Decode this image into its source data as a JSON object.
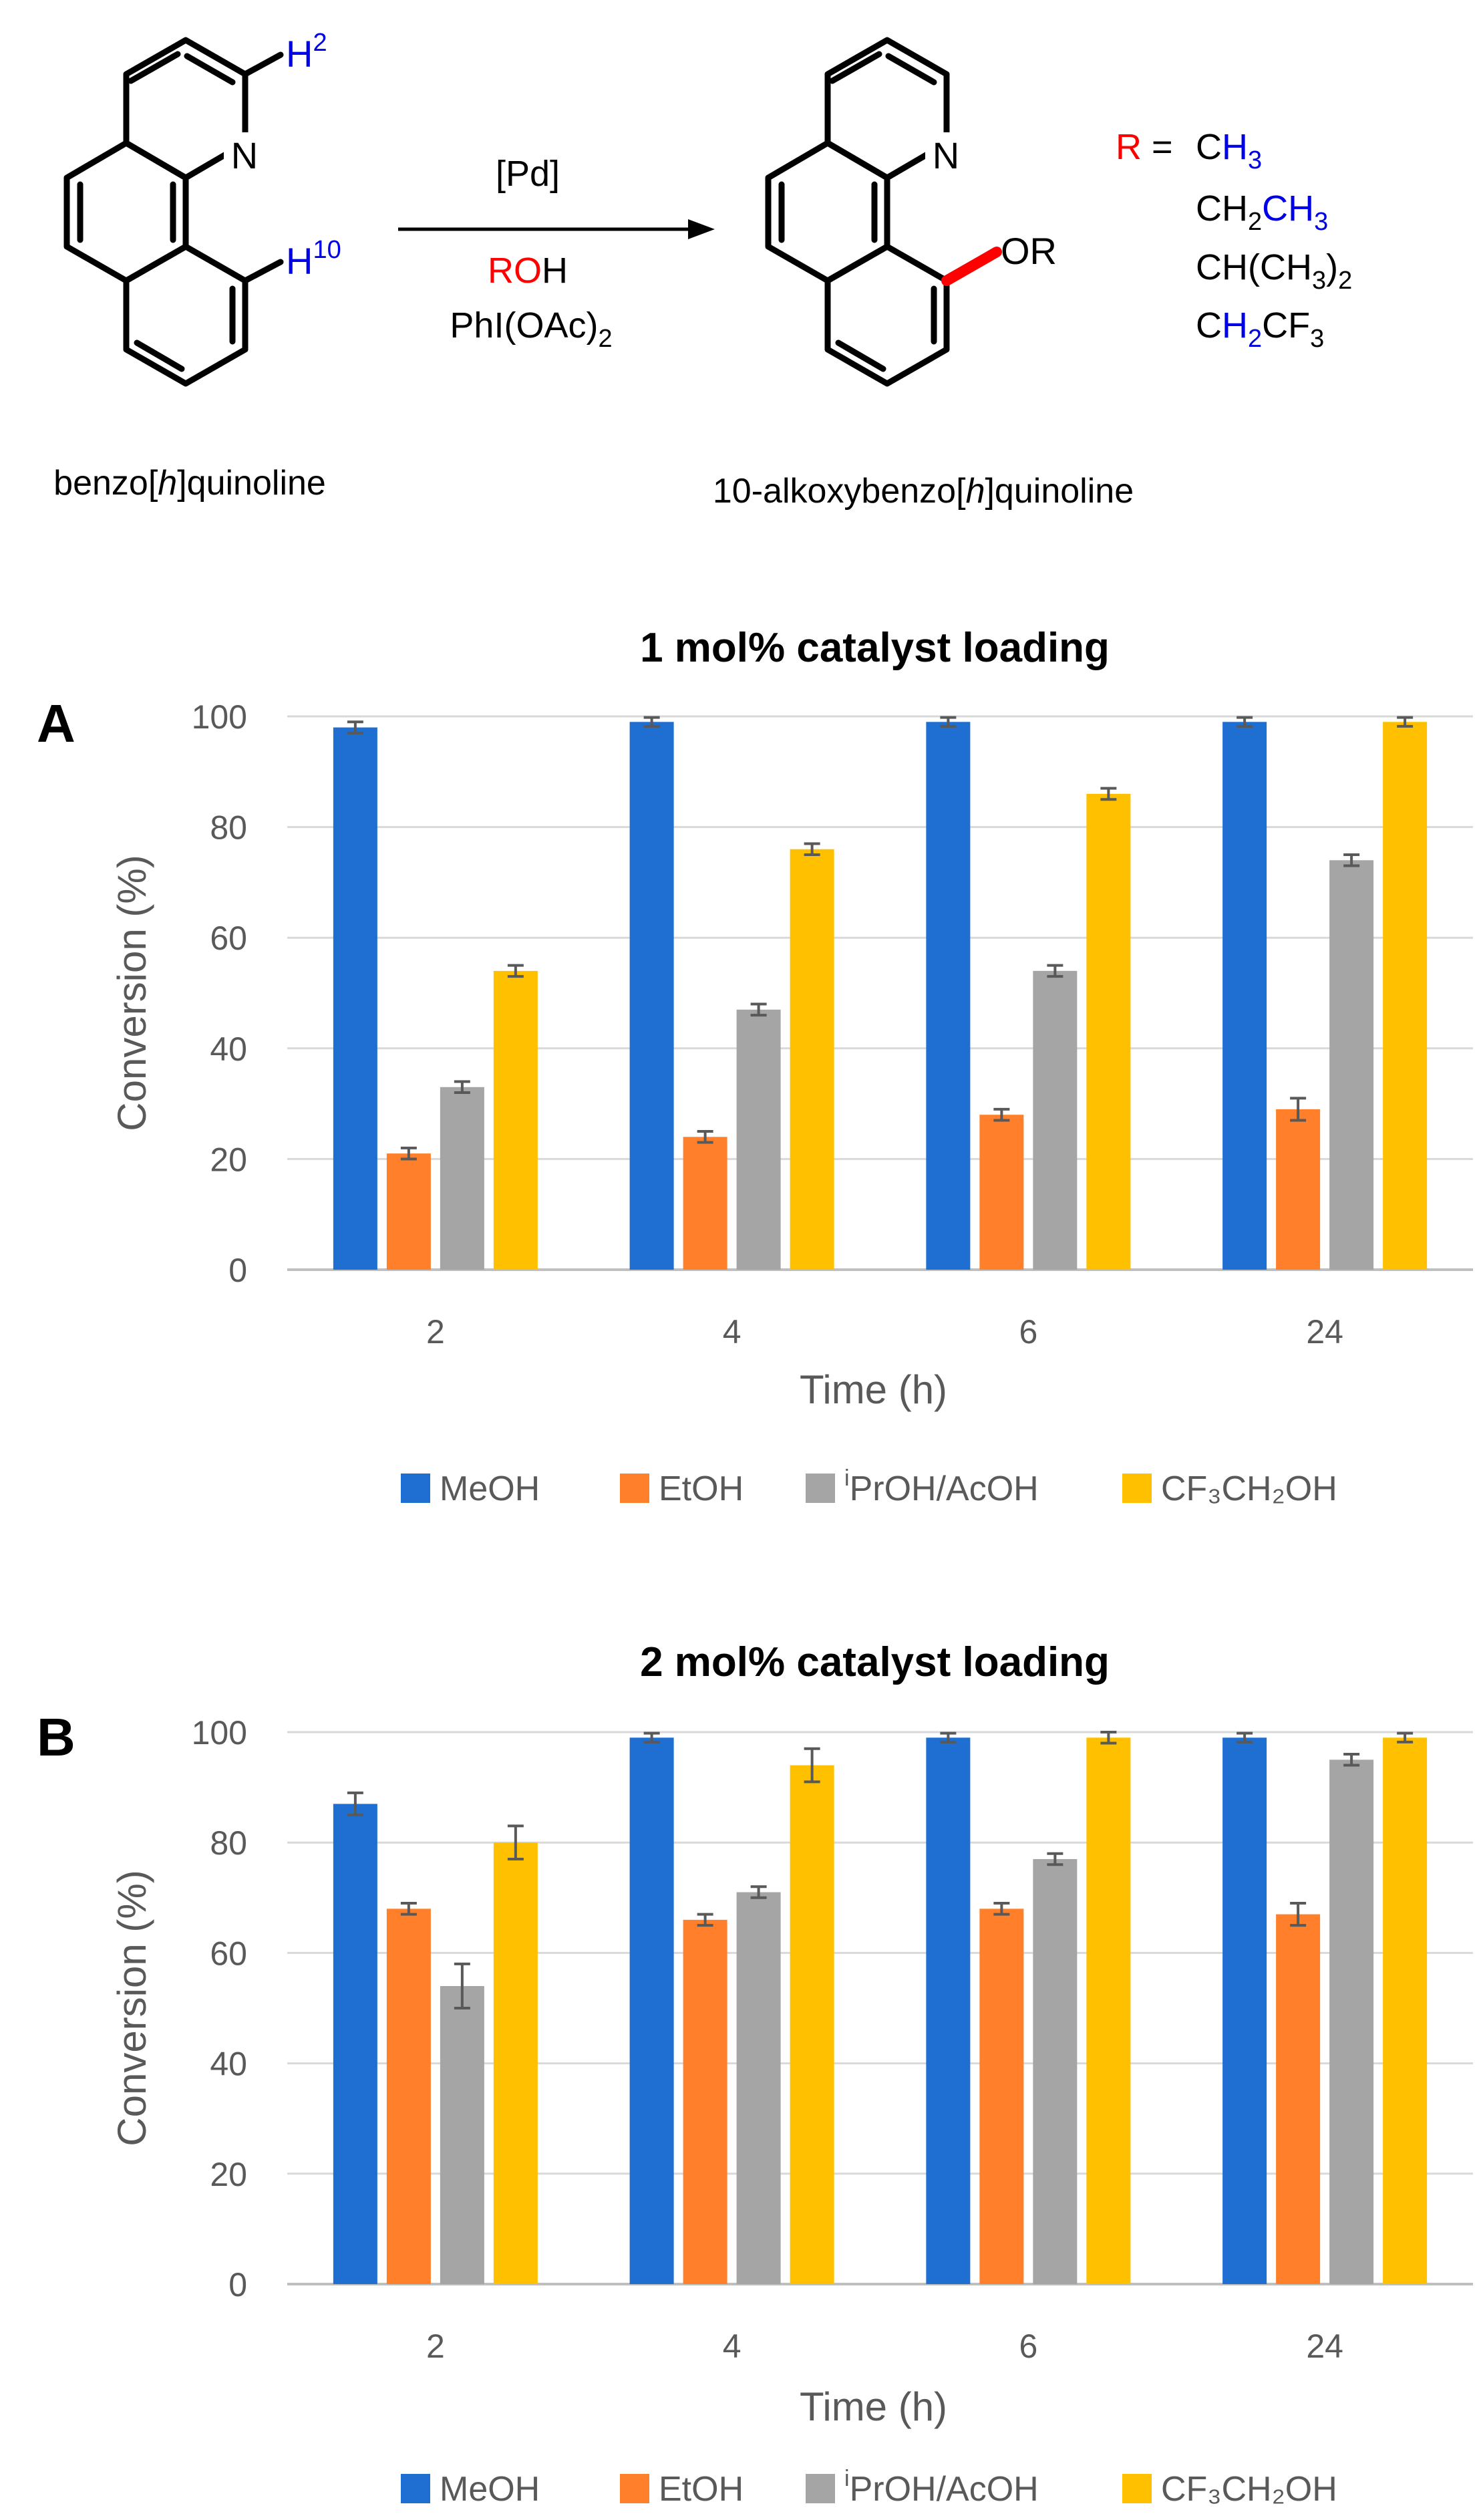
{
  "scheme": {
    "h2": {
      "letter": "H",
      "sup": "2"
    },
    "h10": {
      "letter": "H",
      "sup": "10"
    },
    "ring_n": "N",
    "product_n": "N",
    "product_or": "OR",
    "reagent_catalyst": "[Pd]",
    "reagent_alcohol": {
      "r": "RO",
      "h": "H"
    },
    "reagent_oxidant": "PhI(OAc)",
    "reagent_oxidant_sub": "2",
    "r_label": "R",
    "r_equals": " = ",
    "r_options": [
      [
        {
          "t": "C",
          "c": "k"
        },
        {
          "t": "H",
          "c": "b"
        },
        {
          "t": "3",
          "c": "b",
          "sub": true
        }
      ],
      [
        {
          "t": "CH",
          "c": "k"
        },
        {
          "t": "2",
          "c": "k",
          "sub": true
        },
        {
          "t": "CH",
          "c": "b"
        },
        {
          "t": "3",
          "c": "b",
          "sub": true
        }
      ],
      [
        {
          "t": "CH(CH",
          "c": "k"
        },
        {
          "t": "3",
          "c": "k",
          "sub": true
        },
        {
          "t": ")",
          "c": "k"
        },
        {
          "t": "2",
          "c": "k",
          "sub": true
        }
      ],
      [
        {
          "t": "C",
          "c": "k"
        },
        {
          "t": "H",
          "c": "b"
        },
        {
          "t": "2",
          "c": "b",
          "sub": true
        },
        {
          "t": "CF",
          "c": "k"
        },
        {
          "t": "3",
          "c": "k",
          "sub": true
        }
      ]
    ],
    "reactant_name": {
      "pre": "benzo[",
      "it": "h",
      "post": "]quinoline"
    },
    "product_name": {
      "pre": "10-alkoxybenzo[",
      "it": "h",
      "post": "]quinoline"
    }
  },
  "chart_data": [
    {
      "panel": "A",
      "type": "bar",
      "title": "1 mol% catalyst loading",
      "xlabel": "Time (h)",
      "ylabel": "Conversion (%)",
      "categories": [
        "2",
        "4",
        "6",
        "24"
      ],
      "ylim": [
        0,
        100
      ],
      "yticks": [
        0,
        20,
        40,
        60,
        80,
        100
      ],
      "grid": true,
      "legend": "bottom",
      "series": [
        {
          "name": "MeOH",
          "legend": {
            "pre": "MeOH",
            "sup": "",
            "main": ""
          },
          "color": "#1f6fd2",
          "values": [
            98,
            99,
            99,
            99
          ],
          "errors": [
            1,
            0.8,
            0.8,
            0.8
          ]
        },
        {
          "name": "EtOH",
          "legend": {
            "pre": "EtOH",
            "sup": "",
            "main": ""
          },
          "color": "#ff7f2a",
          "values": [
            21,
            24,
            28,
            29
          ],
          "errors": [
            1,
            1,
            1,
            2
          ]
        },
        {
          "name": "iPrOH/AcOH",
          "legend": {
            "pre": "",
            "sup": "i",
            "main": "PrOH/AcOH"
          },
          "color": "#a5a5a5",
          "values": [
            33,
            47,
            54,
            74
          ],
          "errors": [
            1,
            1,
            1,
            1
          ]
        },
        {
          "name": "CF3CH2OH",
          "legend": {
            "pre": "CF₃CH₂OH",
            "sup": "",
            "main": ""
          },
          "color": "#ffc000",
          "values": [
            54,
            76,
            86,
            99
          ],
          "errors": [
            1,
            1,
            1,
            0.8
          ]
        }
      ]
    },
    {
      "panel": "B",
      "type": "bar",
      "title": "2 mol% catalyst loading",
      "xlabel": "Time (h)",
      "ylabel": "Conversion (%)",
      "categories": [
        "2",
        "4",
        "6",
        "24"
      ],
      "ylim": [
        0,
        100
      ],
      "yticks": [
        0,
        20,
        40,
        60,
        80,
        100
      ],
      "grid": true,
      "legend": "bottom",
      "series": [
        {
          "name": "MeOH",
          "legend": {
            "pre": "MeOH",
            "sup": "",
            "main": ""
          },
          "color": "#1f6fd2",
          "values": [
            87,
            99,
            99,
            99
          ],
          "errors": [
            2,
            0.8,
            0.8,
            0.8
          ]
        },
        {
          "name": "EtOH",
          "legend": {
            "pre": "EtOH",
            "sup": "",
            "main": ""
          },
          "color": "#ff7f2a",
          "values": [
            68,
            66,
            68,
            67
          ],
          "errors": [
            1,
            1,
            1,
            2
          ]
        },
        {
          "name": "iPrOH/AcOH",
          "legend": {
            "pre": "",
            "sup": "i",
            "main": "PrOH/AcOH"
          },
          "color": "#a5a5a5",
          "values": [
            54,
            71,
            77,
            95
          ],
          "errors": [
            4,
            1,
            1,
            1
          ]
        },
        {
          "name": "CF3CH2OH",
          "legend": {
            "pre": "CF₃CH₂OH",
            "sup": "",
            "main": ""
          },
          "color": "#ffc000",
          "values": [
            80,
            94,
            99,
            99
          ],
          "errors": [
            3,
            3,
            1,
            0.8
          ]
        }
      ]
    }
  ]
}
